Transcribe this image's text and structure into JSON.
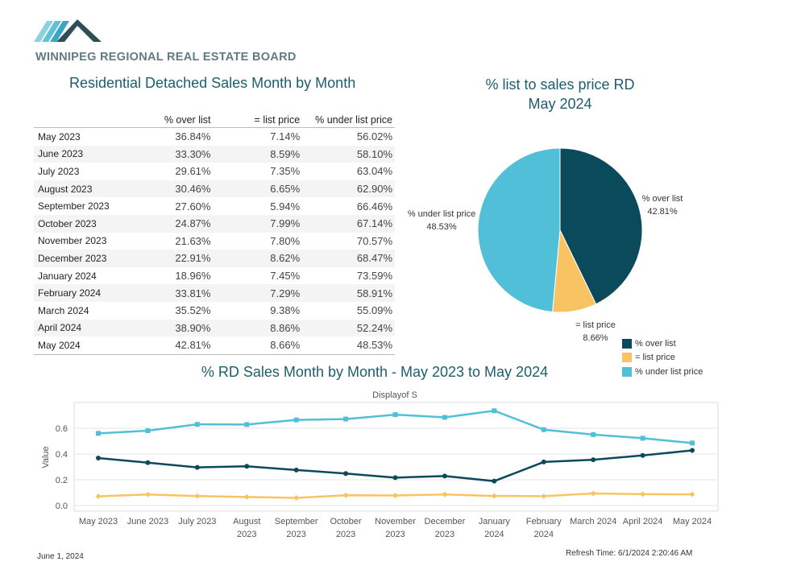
{
  "header": {
    "org_name": "WINNIPEG REGIONAL REAL ESTATE BOARD",
    "table_title": "Residential Detached Sales Month by Month",
    "pie_title_line1": "% list to sales price RD",
    "pie_title_line2": "May 2024",
    "line_title": "% RD Sales Month by Month - May 2023 to May 2024"
  },
  "table": {
    "columns": [
      "% over list",
      "= list price",
      "% under list price"
    ],
    "rows": [
      {
        "month": "May 2023",
        "over": "36.84%",
        "at": "7.14%",
        "under": "56.02%"
      },
      {
        "month": "June 2023",
        "over": "33.30%",
        "at": "8.59%",
        "under": "58.10%"
      },
      {
        "month": "July 2023",
        "over": "29.61%",
        "at": "7.35%",
        "under": "63.04%"
      },
      {
        "month": "August 2023",
        "over": "30.46%",
        "at": "6.65%",
        "under": "62.90%"
      },
      {
        "month": "September 2023",
        "over": "27.60%",
        "at": "5.94%",
        "under": "66.46%"
      },
      {
        "month": "October 2023",
        "over": "24.87%",
        "at": "7.99%",
        "under": "67.14%"
      },
      {
        "month": "November 2023",
        "over": "21.63%",
        "at": "7.80%",
        "under": "70.57%"
      },
      {
        "month": "December 2023",
        "over": "22.91%",
        "at": "8.62%",
        "under": "68.47%"
      },
      {
        "month": "January 2024",
        "over": "18.96%",
        "at": "7.45%",
        "under": "73.59%"
      },
      {
        "month": "February 2024",
        "over": "33.81%",
        "at": "7.29%",
        "under": "58.91%"
      },
      {
        "month": "March 2024",
        "over": "35.52%",
        "at": "9.38%",
        "under": "55.09%"
      },
      {
        "month": "April 2024",
        "over": "38.90%",
        "at": "8.86%",
        "under": "52.24%"
      },
      {
        "month": "May 2024",
        "over": "42.81%",
        "at": "8.66%",
        "under": "48.53%"
      }
    ]
  },
  "legend": {
    "items": [
      {
        "label": "% over list",
        "color": "#0b4a5a"
      },
      {
        "label": "= list price",
        "color": "#f8c463"
      },
      {
        "label": "% under list price",
        "color": "#52bfd8"
      }
    ]
  },
  "chart_data": [
    {
      "type": "pie",
      "title": "% list to sales price RD May 2024",
      "slices": [
        {
          "label": "% over list",
          "value": 42.81,
          "display": "42.81%",
          "color": "#0b4a5a"
        },
        {
          "label": "= list price",
          "value": 8.66,
          "display": "8.66%",
          "color": "#f8c463"
        },
        {
          "label": "% under list price",
          "value": 48.53,
          "display": "48.53%",
          "color": "#52bfd8"
        }
      ]
    },
    {
      "type": "line",
      "title": "% RD Sales Month by Month - May 2023 to May 2024",
      "subtitle": "Displayof S",
      "ylabel": "Value",
      "ylim": [
        0,
        0.75
      ],
      "yticks": [
        0.0,
        0.2,
        0.4,
        0.6
      ],
      "ytick_labels": [
        "0.0",
        "0.2",
        "0.4",
        "0.6"
      ],
      "grid": true,
      "categories": [
        [
          "May 2023"
        ],
        [
          "June 2023"
        ],
        [
          "July 2023"
        ],
        [
          "August",
          "2023"
        ],
        [
          "September",
          "2023"
        ],
        [
          "October",
          "2023"
        ],
        [
          "November",
          "2023"
        ],
        [
          "December",
          "2023"
        ],
        [
          "January",
          "2024"
        ],
        [
          "February",
          "2024"
        ],
        [
          "March 2024"
        ],
        [
          "April 2024"
        ],
        [
          "May 2024"
        ]
      ],
      "series": [
        {
          "name": "% over list",
          "color": "#0b4a5a",
          "marker": "circle",
          "values": [
            0.3684,
            0.333,
            0.2961,
            0.3046,
            0.276,
            0.2487,
            0.2163,
            0.2291,
            0.1896,
            0.3381,
            0.3552,
            0.389,
            0.4281
          ]
        },
        {
          "name": "= list price",
          "color": "#f8c463",
          "marker": "diamond",
          "values": [
            0.0714,
            0.0859,
            0.0735,
            0.0665,
            0.0594,
            0.0799,
            0.078,
            0.0862,
            0.0745,
            0.0729,
            0.0938,
            0.0886,
            0.0866
          ]
        },
        {
          "name": "% under list price",
          "color": "#52bfd8",
          "marker": "square",
          "values": [
            0.5602,
            0.581,
            0.6304,
            0.629,
            0.6646,
            0.6714,
            0.7057,
            0.6847,
            0.7359,
            0.5891,
            0.5509,
            0.5224,
            0.4853
          ]
        }
      ]
    }
  ],
  "footer": {
    "date": "June 1, 2024",
    "refresh_time": "Refresh Time: 6/1/2024 2:20:46 AM"
  }
}
